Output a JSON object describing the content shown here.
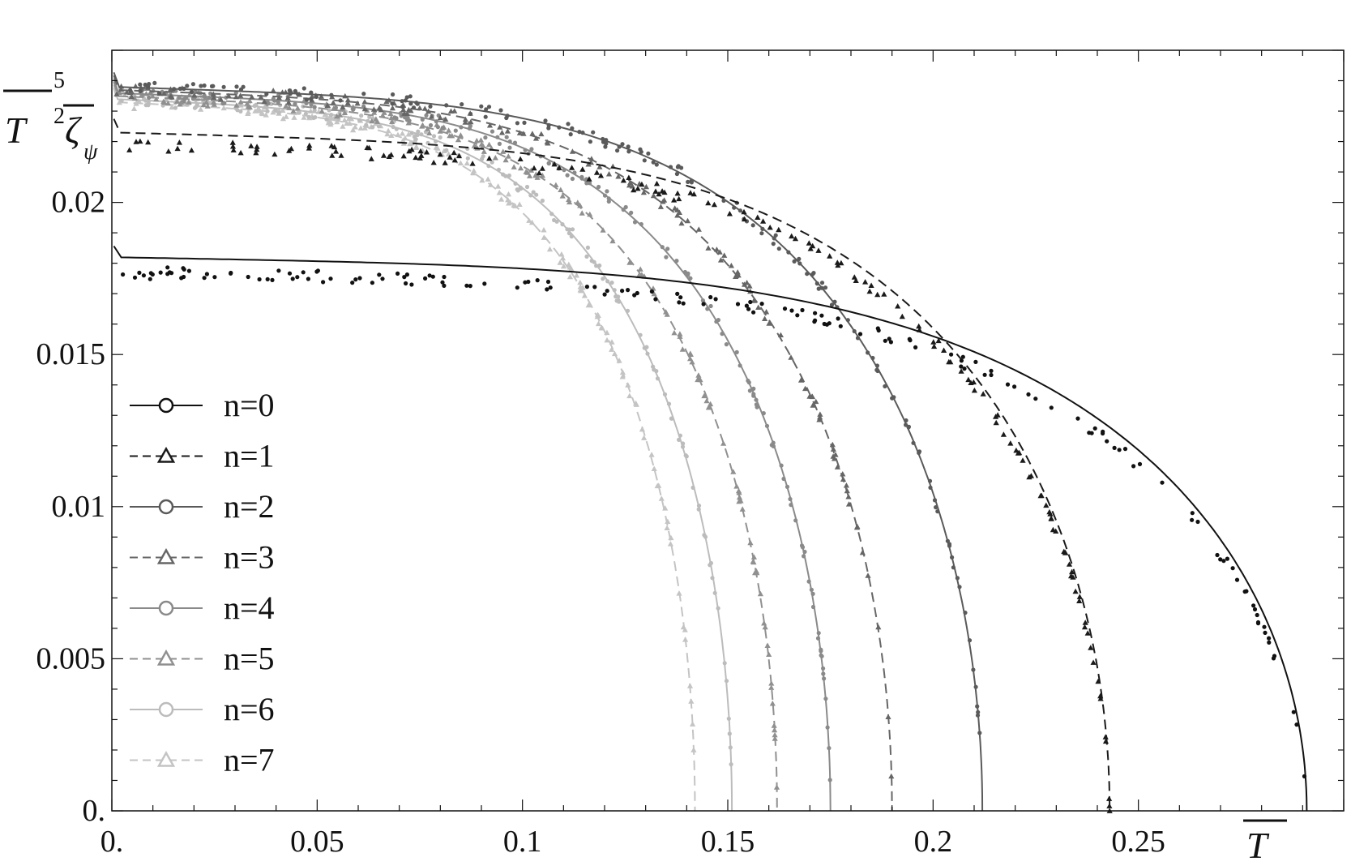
{
  "chart_data": {
    "type": "line",
    "title": "",
    "xlabel": "T",
    "ylabel": {
      "t": "T",
      "exp": "5",
      "den": "2",
      "zeta": "ζ",
      "sub": "ψ"
    },
    "xlim": [
      0,
      0.3
    ],
    "ylim": [
      0,
      0.025
    ],
    "grid": false,
    "legend_position": "left-middle",
    "x_ticks": [
      0,
      0.05,
      0.1,
      0.15,
      0.2,
      0.25
    ],
    "x_tick_labels": [
      "0.",
      "0.05",
      "0.1",
      "0.15",
      "0.2",
      "0.25"
    ],
    "y_ticks": [
      0,
      0.005,
      0.01,
      0.015,
      0.02
    ],
    "y_tick_labels": [
      "0.",
      "0.005",
      "0.01",
      "0.015",
      "0.02"
    ],
    "colors": {
      "n0": "#111111",
      "n1": "#1a1a1a",
      "n2": "#5a5a5a",
      "n3": "#666666",
      "n4": "#8a8a8a",
      "n5": "#909090",
      "n6": "#bcbcbc",
      "n7": "#c4c4c4"
    },
    "series": [
      {
        "name": "n=0",
        "marker": "circle",
        "dash": "solid",
        "color_key": "n0",
        "tc": 0.291,
        "plateau": 0.0182,
        "points_offset": -0.0005
      },
      {
        "name": "n=1",
        "marker": "triangle",
        "dash": "dashed",
        "color_key": "n1",
        "tc": 0.243,
        "plateau": 0.0223,
        "points_offset": -0.0004
      },
      {
        "name": "n=2",
        "marker": "circle",
        "dash": "solid",
        "color_key": "n2",
        "tc": 0.212,
        "plateau": 0.0238,
        "points_offset": 0.0
      },
      {
        "name": "n=3",
        "marker": "triangle",
        "dash": "dashed",
        "color_key": "n3",
        "tc": 0.19,
        "plateau": 0.0237,
        "points_offset": 0.0
      },
      {
        "name": "n=4",
        "marker": "circle",
        "dash": "solid",
        "color_key": "n4",
        "tc": 0.175,
        "plateau": 0.0236,
        "points_offset": 0.0
      },
      {
        "name": "n=5",
        "marker": "triangle",
        "dash": "dashed",
        "color_key": "n5",
        "tc": 0.162,
        "plateau": 0.0235,
        "points_offset": 0.0
      },
      {
        "name": "n=6",
        "marker": "circle",
        "dash": "solid",
        "color_key": "n6",
        "tc": 0.151,
        "plateau": 0.0234,
        "points_offset": 0.0
      },
      {
        "name": "n=7",
        "marker": "triangle",
        "dash": "dashed",
        "color_key": "n7",
        "tc": 0.142,
        "plateau": 0.0233,
        "points_offset": 0.0
      }
    ]
  }
}
